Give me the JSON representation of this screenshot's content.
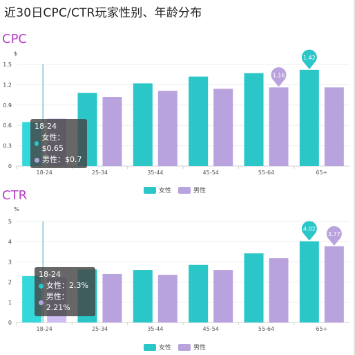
{
  "page_title": "近30日CPC/CTR玩家性别、年龄分布",
  "colors": {
    "female": "#2ac6c8",
    "male": "#b9a3de",
    "female_hover": "#34d8da",
    "male_hover": "#d0bdf2"
  },
  "legend": {
    "female": "女性",
    "male": "男性"
  },
  "chart_data": [
    {
      "id": "cpc",
      "type": "bar",
      "title": "CPC",
      "ylabel": "$",
      "ylim": [
        0,
        1.5
      ],
      "yticks": [
        "0",
        "0.3",
        "0.6",
        "0.9",
        "1.2",
        "1.5"
      ],
      "ytick_values": [
        0,
        0.3,
        0.6,
        0.9,
        1.2,
        1.5
      ],
      "categories": [
        "18-24",
        "25-34",
        "35-44",
        "45-54",
        "55-64",
        "65+"
      ],
      "series": [
        {
          "name": "女性",
          "values": [
            0.65,
            1.08,
            1.22,
            1.32,
            1.37,
            1.42
          ]
        },
        {
          "name": "男性",
          "values": [
            0.7,
            1.02,
            1.11,
            1.14,
            1.16,
            1.16
          ]
        }
      ],
      "markers": [
        {
          "series": 1,
          "index": 4,
          "label": "1.16"
        },
        {
          "series": 0,
          "index": 5,
          "label": "1.42"
        }
      ],
      "tooltip": {
        "category": "18-24",
        "rows": [
          "女性：$0.65",
          "男性：$0.7"
        ]
      }
    },
    {
      "id": "ctr",
      "type": "bar",
      "title": "CTR",
      "ylabel": "%",
      "ylim": [
        0,
        5
      ],
      "yticks": [
        "0",
        "1",
        "2",
        "3",
        "4",
        "5"
      ],
      "ytick_values": [
        0,
        1,
        2,
        3,
        4,
        5
      ],
      "categories": [
        "18-24",
        "25-34",
        "35-44",
        "45-54",
        "55-64",
        "65+"
      ],
      "series": [
        {
          "name": "女性",
          "values": [
            2.3,
            2.62,
            2.6,
            2.85,
            3.42,
            4.02
          ]
        },
        {
          "name": "男性",
          "values": [
            2.21,
            2.4,
            2.36,
            2.6,
            3.18,
            3.77
          ]
        }
      ],
      "markers": [
        {
          "series": 0,
          "index": 5,
          "label": "4.02"
        },
        {
          "series": 1,
          "index": 5,
          "label": "3.77"
        }
      ],
      "tooltip": {
        "category": "18-24",
        "rows": [
          "女性：2.3%",
          "男性：2.21%"
        ]
      }
    }
  ]
}
